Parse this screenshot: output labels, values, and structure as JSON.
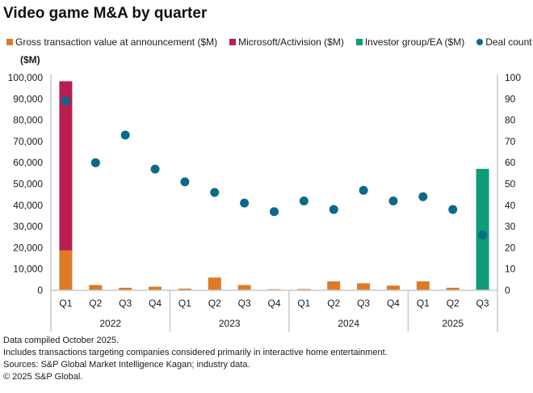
{
  "title": "Video game M&A by quarter",
  "unit_label": "($M)",
  "legend": [
    {
      "label": "Gross transaction value at announcement ($M)",
      "color": "#dd7a28",
      "shape": "square"
    },
    {
      "label": "Microsoft/Activision ($M)",
      "color": "#b81f4f",
      "shape": "square"
    },
    {
      "label": "Investor group/EA ($M)",
      "color": "#0e9b78",
      "shape": "square"
    },
    {
      "label": "Deal count",
      "color": "#0b6a87",
      "shape": "circle"
    }
  ],
  "notes": [
    "Data compiled October 2025.",
    "Includes transactions targeting companies considered primarily in interactive home entertainment.",
    "Sources: S&P Global Market Intelligence Kagan; industry data.",
    "© 2025 S&P Global."
  ],
  "chart_data": {
    "type": "bar",
    "title": "Video game M&A by quarter",
    "xlabel": "",
    "ylabel": "($M)",
    "y2label": "",
    "ylim": [
      0,
      100000
    ],
    "y2lim": [
      0,
      100
    ],
    "yticks": [
      "0",
      "10,000",
      "20,000",
      "30,000",
      "40,000",
      "50,000",
      "60,000",
      "70,000",
      "80,000",
      "90,000",
      "100,000"
    ],
    "y2ticks": [
      "0",
      "10",
      "20",
      "30",
      "40",
      "50",
      "60",
      "70",
      "80",
      "90",
      "100"
    ],
    "grid": false,
    "legend_position": "top",
    "categories": [
      "Q1",
      "Q2",
      "Q3",
      "Q4",
      "Q1",
      "Q2",
      "Q3",
      "Q4",
      "Q1",
      "Q2",
      "Q3",
      "Q4",
      "Q1",
      "Q2",
      "Q3"
    ],
    "groups": [
      {
        "label": "2022",
        "count": 4
      },
      {
        "label": "2023",
        "count": 4
      },
      {
        "label": "2024",
        "count": 4
      },
      {
        "label": "2025",
        "count": 3
      }
    ],
    "series": [
      {
        "name": "Gross transaction value at announcement ($M)",
        "type": "stacked-bar",
        "axis": "left",
        "color": "#dd7a28",
        "values": [
          18700,
          2500,
          1200,
          1700,
          800,
          6000,
          2500,
          500,
          600,
          4200,
          3300,
          2200,
          4200,
          1200,
          300
        ]
      },
      {
        "name": "Microsoft/Activision ($M)",
        "type": "stacked-bar",
        "axis": "left",
        "color": "#b81f4f",
        "values": [
          79600,
          0,
          0,
          0,
          0,
          0,
          0,
          0,
          0,
          0,
          0,
          0,
          0,
          0,
          0
        ]
      },
      {
        "name": "Investor group/EA ($M)",
        "type": "stacked-bar",
        "axis": "left",
        "color": "#0e9b78",
        "values": [
          0,
          0,
          0,
          0,
          0,
          0,
          0,
          0,
          0,
          0,
          0,
          0,
          0,
          0,
          56800
        ]
      },
      {
        "name": "Deal count",
        "type": "scatter",
        "axis": "right",
        "color": "#0b6a87",
        "values": [
          89,
          60,
          73,
          57,
          51,
          46,
          41,
          37,
          42,
          38,
          47,
          42,
          44,
          38,
          26
        ]
      }
    ]
  }
}
